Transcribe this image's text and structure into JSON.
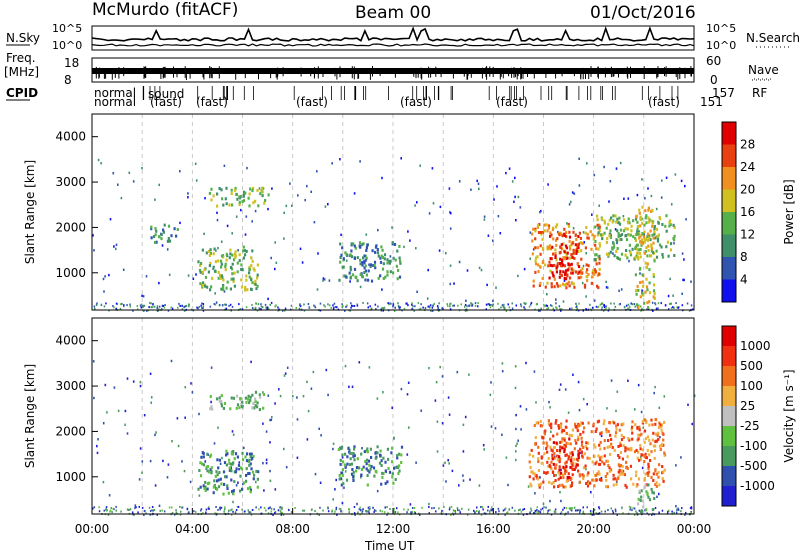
{
  "header": {
    "station": "McMurdo (fitACF)",
    "beam": "Beam 00",
    "date": "01/Oct/2016"
  },
  "noise_panel": {
    "left_label": "N.Sky",
    "right_label": "N.Search",
    "y_ticks": [
      "10^5",
      "10^0"
    ],
    "right_ticks": [
      "10^5",
      "10^0"
    ]
  },
  "freq_panel": {
    "left_label_top": "Freq.",
    "left_label_units": "[MHz]",
    "left_ticks": [
      "18",
      "8"
    ],
    "right_label": "Nave",
    "right_ticks": [
      "60",
      "0"
    ]
  },
  "cpid_row": {
    "label": "CPID",
    "right_label": "RF",
    "mode_row1": "normal",
    "mode_row2": "normal",
    "fragments": [
      "sound",
      "(fast)",
      "(fast)",
      "(fast)",
      "(fast)",
      "(fast)",
      "(fast)",
      "157",
      "151",
      "RF"
    ]
  },
  "chart_data": [
    {
      "type": "heatmap",
      "name": "Power",
      "ylabel": "Slant Range [km]",
      "xlabel": "Time UT",
      "ylim": [
        180,
        4500
      ],
      "y_ticks": [
        "1000",
        "2000",
        "3000",
        "4000"
      ],
      "x_ticks": [
        "00:00",
        "04:00",
        "08:00",
        "12:00",
        "16:00",
        "20:00",
        "00:00"
      ],
      "colorbar": {
        "label": "Power [dB]",
        "ticks": [
          "4",
          "8",
          "12",
          "16",
          "20",
          "24",
          "28"
        ],
        "colors": [
          "#1010ee",
          "#2f55b0",
          "#3f8f6b",
          "#56b04a",
          "#d0c020",
          "#f09020",
          "#e84010",
          "#e00000"
        ]
      },
      "regions": [
        {
          "t0": 2.3,
          "t1": 3.4,
          "r0": 1700,
          "r1": 2100,
          "level": 2
        },
        {
          "t0": 4.2,
          "t1": 6.6,
          "r0": 650,
          "r1": 1600,
          "level": 3
        },
        {
          "t0": 4.6,
          "t1": 7.0,
          "r0": 2500,
          "r1": 2900,
          "level": 3
        },
        {
          "t0": 9.8,
          "t1": 12.4,
          "r0": 850,
          "r1": 1700,
          "level": 2
        },
        {
          "t0": 17.5,
          "t1": 20.2,
          "r0": 700,
          "r1": 2100,
          "level": 5
        },
        {
          "t0": 18.2,
          "t1": 19.4,
          "r0": 900,
          "r1": 1900,
          "level": 7
        },
        {
          "t0": 20.0,
          "t1": 23.2,
          "r0": 1300,
          "r1": 2300,
          "level": 3
        },
        {
          "t0": 21.6,
          "t1": 22.4,
          "r0": 250,
          "r1": 2500,
          "level": 4
        }
      ]
    },
    {
      "type": "heatmap",
      "name": "Velocity",
      "ylabel": "Slant Range [km]",
      "xlabel": "Time UT",
      "ylim": [
        180,
        4500
      ],
      "y_ticks": [
        "1000",
        "2000",
        "3000",
        "4000"
      ],
      "x_ticks": [
        "00:00",
        "04:00",
        "08:00",
        "12:00",
        "16:00",
        "20:00",
        "00:00"
      ],
      "colorbar": {
        "label": "Velocity [m s⁻¹]",
        "ticks": [
          "1000",
          "500",
          "100",
          "25",
          "-25",
          "-100",
          "-500",
          "-1000"
        ],
        "colors": [
          "#2020d0",
          "#3050b0",
          "#4a9a60",
          "#60c040",
          "#c0c0c0",
          "#f0b040",
          "#f07020",
          "#f03010",
          "#e00000"
        ]
      },
      "regions": [
        {
          "t0": 4.2,
          "t1": 6.6,
          "r0": 650,
          "r1": 1600,
          "level": 2
        },
        {
          "t0": 4.6,
          "t1": 7.0,
          "r0": 2500,
          "r1": 2900,
          "level": 3
        },
        {
          "t0": 9.8,
          "t1": 12.4,
          "r0": 850,
          "r1": 1700,
          "level": 2
        },
        {
          "t0": 17.4,
          "t1": 22.8,
          "r0": 800,
          "r1": 2300,
          "level": 6
        },
        {
          "t0": 18.3,
          "t1": 19.6,
          "r0": 1000,
          "r1": 1900,
          "level": 7
        },
        {
          "t0": 21.7,
          "t1": 22.4,
          "r0": 250,
          "r1": 900,
          "level": 3
        }
      ]
    }
  ]
}
